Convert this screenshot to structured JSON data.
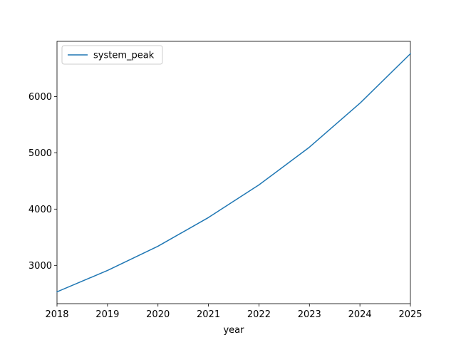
{
  "chart_data": {
    "type": "line",
    "title": "",
    "xlabel": "year",
    "ylabel": "",
    "x": [
      2018,
      2019,
      2020,
      2021,
      2022,
      2023,
      2024,
      2025
    ],
    "x_ticks": [
      "2018",
      "2019",
      "2020",
      "2021",
      "2022",
      "2023",
      "2024",
      "2025"
    ],
    "y_ticks": [
      "3000",
      "4000",
      "5000",
      "6000"
    ],
    "xlim": [
      2018,
      2025
    ],
    "ylim": [
      2320,
      6980
    ],
    "grid": false,
    "legend_position": "top-left",
    "series": [
      {
        "name": "system_peak",
        "color": "#1f77b4",
        "values": [
          2530,
          2910,
          3340,
          3850,
          4430,
          5100,
          5880,
          6760
        ]
      }
    ]
  }
}
